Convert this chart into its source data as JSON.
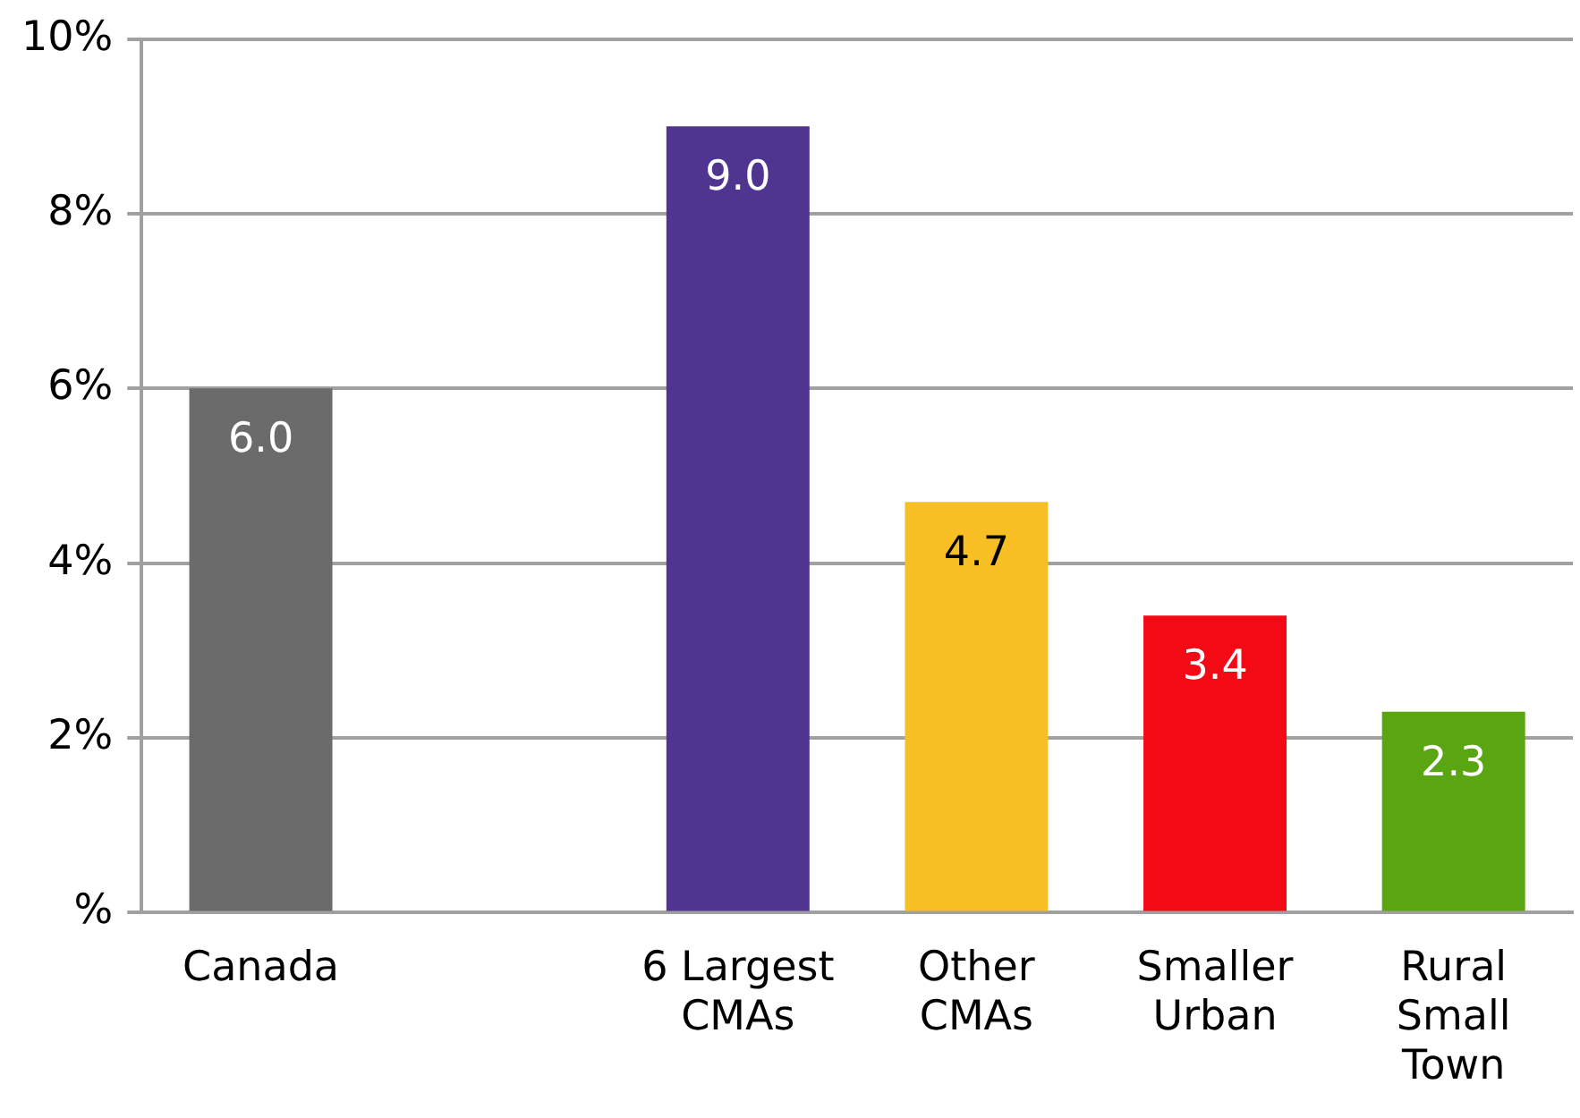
{
  "chart_data": {
    "type": "bar",
    "categories": [
      "Canada",
      null,
      "6 Largest CMAs",
      "Other CMAs",
      "Smaller Urban",
      "Rural Small Town"
    ],
    "values": [
      6.0,
      null,
      9.0,
      4.7,
      3.4,
      2.3
    ],
    "colors": [
      "#6b6b6b",
      null,
      "#4f3590",
      "#f8bf24",
      "#f20a14",
      "#5aa512"
    ],
    "value_labels": [
      "6.0",
      null,
      "9.0",
      "4.7",
      "3.4",
      "2.3"
    ],
    "ylim": [
      0,
      10
    ],
    "yticks": [
      {
        "value": 0,
        "label": "%"
      },
      {
        "value": 2,
        "label": "2%"
      },
      {
        "value": 4,
        "label": "4%"
      },
      {
        "value": 6,
        "label": "6%"
      },
      {
        "value": 8,
        "label": "8%"
      },
      {
        "value": 10,
        "label": "10%"
      }
    ],
    "grid": "y",
    "legend": false
  }
}
